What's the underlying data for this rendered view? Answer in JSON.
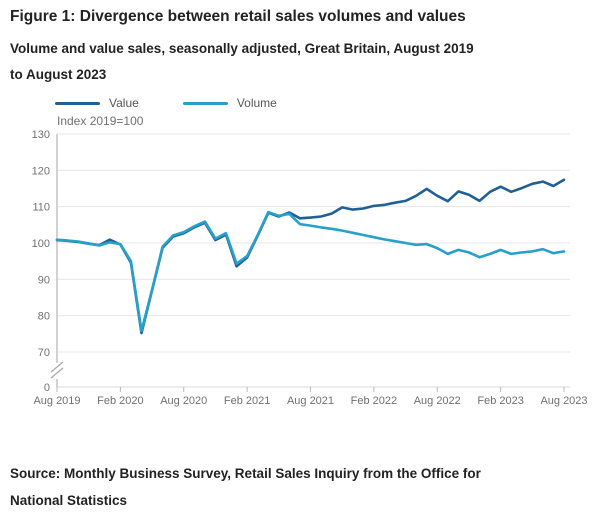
{
  "figure": {
    "title": "Figure 1: Divergence between retail sales volumes and values",
    "subtitle_lines": [
      "Volume and value sales, seasonally adjusted, Great Britain, August 2019",
      "to August 2023"
    ],
    "source_lines": [
      "Source: Monthly Business Survey, Retail Sales Inquiry from the Office for",
      "National Statistics"
    ]
  },
  "chart_data": {
    "type": "line",
    "index_label": "Index 2019=100",
    "legend_position": "top-left",
    "grid": "horizontal",
    "axis_break_between": [
      70,
      0
    ],
    "y_ticks": [
      130,
      120,
      110,
      100,
      90,
      80,
      70
    ],
    "y_baseline_label": "0",
    "ylim_display": [
      70,
      130
    ],
    "x_tick_labels": [
      "Aug 2019",
      "Feb 2020",
      "Aug 2020",
      "Feb 2021",
      "Aug 2021",
      "Feb 2022",
      "Aug 2022",
      "Feb 2023",
      "Aug 2023"
    ],
    "x_tick_indices": [
      0,
      6,
      12,
      18,
      24,
      30,
      36,
      42,
      48
    ],
    "months": [
      "Aug 2019",
      "Sep 2019",
      "Oct 2019",
      "Nov 2019",
      "Dec 2019",
      "Jan 2020",
      "Feb 2020",
      "Mar 2020",
      "Apr 2020",
      "May 2020",
      "Jun 2020",
      "Jul 2020",
      "Aug 2020",
      "Sep 2020",
      "Oct 2020",
      "Nov 2020",
      "Dec 2020",
      "Jan 2021",
      "Feb 2021",
      "Mar 2021",
      "Apr 2021",
      "May 2021",
      "Jun 2021",
      "Jul 2021",
      "Aug 2021",
      "Sep 2021",
      "Oct 2021",
      "Nov 2021",
      "Dec 2021",
      "Jan 2022",
      "Feb 2022",
      "Mar 2022",
      "Apr 2022",
      "May 2022",
      "Jun 2022",
      "Jul 2022",
      "Aug 2022",
      "Sep 2022",
      "Oct 2022",
      "Nov 2022",
      "Dec 2022",
      "Jan 2023",
      "Feb 2023",
      "Mar 2023",
      "Apr 2023",
      "May 2023",
      "Jun 2023",
      "Jul 2023",
      "Aug 2023"
    ],
    "series": [
      {
        "name": "Value",
        "color": "#206095",
        "values": [
          100.8,
          100.6,
          100.3,
          99.8,
          99.4,
          100.9,
          99.6,
          94.6,
          75.2,
          87.0,
          98.7,
          101.8,
          102.7,
          104.3,
          105.6,
          100.8,
          102.3,
          93.6,
          96.0,
          102.0,
          108.3,
          107.3,
          108.4,
          106.8,
          107.0,
          107.3,
          108.1,
          109.8,
          109.2,
          109.5,
          110.2,
          110.5,
          111.1,
          111.6,
          113.0,
          114.9,
          113.0,
          111.5,
          114.2,
          113.3,
          111.6,
          114.1,
          115.5,
          114.1,
          115.1,
          116.3,
          116.9,
          115.7,
          117.4
        ]
      },
      {
        "name": "Volume",
        "color": "#27A0CC",
        "values": [
          100.9,
          100.7,
          100.4,
          99.9,
          99.3,
          100.2,
          99.7,
          95.0,
          75.8,
          87.2,
          99.0,
          102.1,
          103.0,
          104.6,
          105.9,
          101.2,
          102.7,
          94.3,
          96.4,
          102.2,
          108.5,
          107.5,
          108.0,
          105.2,
          104.8,
          104.3,
          103.9,
          103.4,
          102.8,
          102.2,
          101.6,
          101.0,
          100.5,
          100.0,
          99.5,
          99.7,
          98.6,
          97.0,
          98.1,
          97.4,
          96.1,
          97.0,
          98.1,
          97.0,
          97.4,
          97.7,
          98.3,
          97.2,
          97.7
        ]
      }
    ],
    "styles": {
      "gridline_color": "#e7e7e7",
      "baseline_color": "#d8d8d8",
      "y_axis_color": "#a6a6a6",
      "tick_color": "#b9b9b9",
      "axis_label_color": "#707071"
    }
  }
}
